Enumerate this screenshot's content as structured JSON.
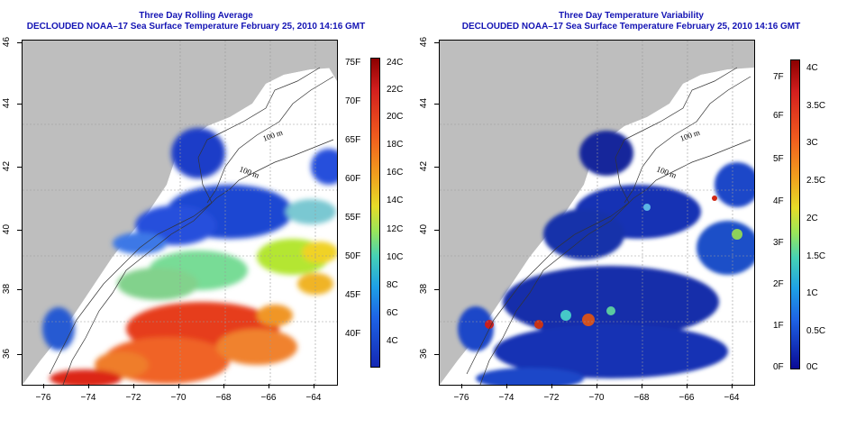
{
  "left_panel": {
    "title_line1": "Three Day Rolling Average",
    "title_line2": "DECLOUDED NOAA–17 Sea Surface Temperature February 25, 2010 14:16 GMT",
    "colorbar_f_labels": [
      "75F",
      "70F",
      "65F",
      "60F",
      "55F",
      "50F",
      "45F",
      "40F"
    ],
    "colorbar_c_labels": [
      "24C",
      "22C",
      "20C",
      "18C",
      "16C",
      "14C",
      "12C",
      "10C",
      "8C",
      "6C",
      "4C"
    ],
    "contour_labels": [
      "100 m",
      "100 m",
      "200 m"
    ]
  },
  "right_panel": {
    "title_line1": "Three Day Temperature Variability",
    "title_line2": "DECLOUDED NOAA–17 Sea Surface Temperature February 25, 2010 14:16 GMT",
    "colorbar_f_labels": [
      "7F",
      "6F",
      "5F",
      "4F",
      "3F",
      "2F",
      "1F",
      "0F"
    ],
    "colorbar_c_labels": [
      "4C",
      "3.5C",
      "3C",
      "2.5C",
      "2C",
      "1.5C",
      "1C",
      "0.5C",
      "0C"
    ],
    "contour_labels": [
      "100 m",
      "100 m",
      "200 m"
    ]
  },
  "axes": {
    "x_ticks": [
      "−76",
      "−74",
      "−72",
      "−70",
      "−68",
      "−66",
      "−64"
    ],
    "y_ticks": [
      "36",
      "38",
      "40",
      "42",
      "44",
      "46"
    ]
  },
  "colors": {
    "title": "#1414b4",
    "land": "#bebebe",
    "no_data": "#ffffff"
  }
}
